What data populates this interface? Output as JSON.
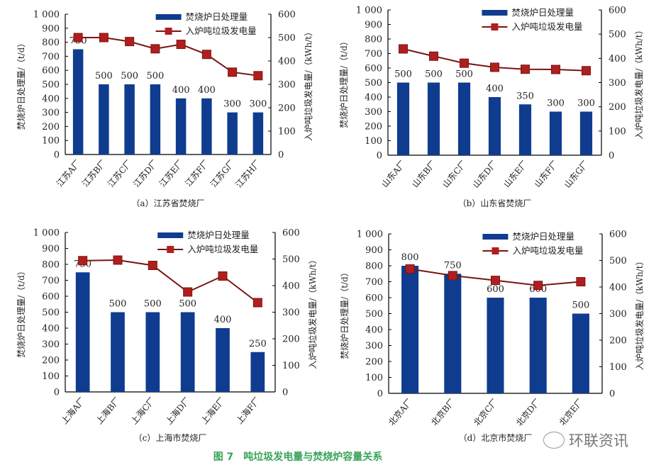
{
  "legend": {
    "bar": "焚烧炉日处理量",
    "line": "入炉吨垃圾发电量"
  },
  "figure_title": "图 7　吨垃圾发电量与焚烧炉容量关系",
  "watermark": "环联资讯",
  "colors": {
    "bar": "#0f3c8f",
    "line": "#7a1414",
    "marker": "#b01e1e",
    "title": "#3aa35a"
  },
  "chart_data": [
    {
      "type": "bar+line",
      "caption": "（a）江苏省焚烧厂",
      "categories": [
        "江苏A厂",
        "江苏B厂",
        "江苏C厂",
        "江苏D厂",
        "江苏E厂",
        "江苏F厂",
        "江苏G厂",
        "江苏H厂"
      ],
      "series": [
        {
          "name": "焚烧炉日处理量",
          "axis": "left",
          "values": [
            750,
            500,
            500,
            500,
            400,
            400,
            300,
            300
          ]
        },
        {
          "name": "入炉吨垃圾发电量",
          "axis": "right",
          "values": [
            500,
            500,
            483,
            452,
            471,
            428,
            352,
            337
          ]
        }
      ],
      "ylabel": "焚烧炉日处理量/（t/d）",
      "y2label": "入炉吨垃圾发电量/（kWh/t）",
      "ylim": [
        0,
        1000
      ],
      "y2lim": [
        0,
        600
      ],
      "yticks": [
        "0",
        "100",
        "200",
        "300",
        "400",
        "500",
        "600",
        "700",
        "800",
        "900",
        "1 000"
      ],
      "y2ticks": [
        "0",
        "100",
        "200",
        "300",
        "400",
        "500",
        "600"
      ],
      "legend": "top-right",
      "grid": false
    },
    {
      "type": "bar+line",
      "caption": "（b）山东省焚烧厂",
      "categories": [
        "山东A厂",
        "山东B厂",
        "山东C厂",
        "山东D厂",
        "山东E厂",
        "山东F厂",
        "山东G厂"
      ],
      "series": [
        {
          "name": "焚烧炉日处理量",
          "axis": "left",
          "values": [
            500,
            500,
            500,
            400,
            350,
            300,
            300
          ]
        },
        {
          "name": "入炉吨垃圾发电量",
          "axis": "right",
          "values": [
            439,
            409,
            380,
            363,
            355,
            354,
            349
          ]
        }
      ],
      "ylabel": "焚烧炉日处理量/（t/d）",
      "y2label": "入炉吨垃圾发电量/（kWh/t）",
      "ylim": [
        0,
        1000
      ],
      "y2lim": [
        0,
        600
      ],
      "yticks": [
        "0",
        "100",
        "200",
        "300",
        "400",
        "500",
        "600",
        "700",
        "800",
        "900",
        "1 000"
      ],
      "y2ticks": [
        "0",
        "100",
        "200",
        "300",
        "400",
        "500",
        "600"
      ],
      "legend": "top-right",
      "grid": false
    },
    {
      "type": "bar+line",
      "caption": "（c）上海市焚烧厂",
      "categories": [
        "上海A厂",
        "上海B厂",
        "上海C厂",
        "上海D厂",
        "上海E厂",
        "上海F厂"
      ],
      "series": [
        {
          "name": "焚烧炉日处理量",
          "axis": "left",
          "values": [
            750,
            500,
            500,
            500,
            400,
            250
          ]
        },
        {
          "name": "入炉吨垃圾发电量",
          "axis": "right",
          "values": [
            494,
            496,
            476,
            376,
            436,
            336
          ]
        }
      ],
      "ylabel": "焚烧炉日处理量/（t/d）",
      "y2label": "入炉吨垃圾发电量/（kWh/t）",
      "ylim": [
        0,
        1000
      ],
      "y2lim": [
        0,
        600
      ],
      "yticks": [
        "0",
        "100",
        "200",
        "300",
        "400",
        "500",
        "600",
        "700",
        "800",
        "900",
        "1 000"
      ],
      "y2ticks": [
        "0",
        "100",
        "200",
        "300",
        "400",
        "500",
        "600"
      ],
      "legend": "top-right",
      "grid": false
    },
    {
      "type": "bar+line",
      "caption": "（d）北京市焚烧厂",
      "categories": [
        "北京A厂",
        "北京B厂",
        "北京C厂",
        "北京D厂",
        "北京E厂"
      ],
      "series": [
        {
          "name": "焚烧炉日处理量",
          "axis": "left",
          "values": [
            800,
            750,
            600,
            600,
            500
          ]
        },
        {
          "name": "入炉吨垃圾发电量",
          "axis": "right",
          "values": [
            468,
            443,
            425,
            406,
            420
          ]
        }
      ],
      "ylabel": "焚烧炉日处理量/（t/d）",
      "y2label": "入炉吨垃圾发电量/（kWh/t）",
      "ylim": [
        0,
        1000
      ],
      "y2lim": [
        0,
        600
      ],
      "yticks": [
        "0",
        "100",
        "200",
        "300",
        "400",
        "500",
        "600",
        "700",
        "800",
        "900",
        "1 000"
      ],
      "y2ticks": [
        "0",
        "100",
        "200",
        "300",
        "400",
        "500",
        "600"
      ],
      "legend": "top-right",
      "grid": false
    }
  ]
}
